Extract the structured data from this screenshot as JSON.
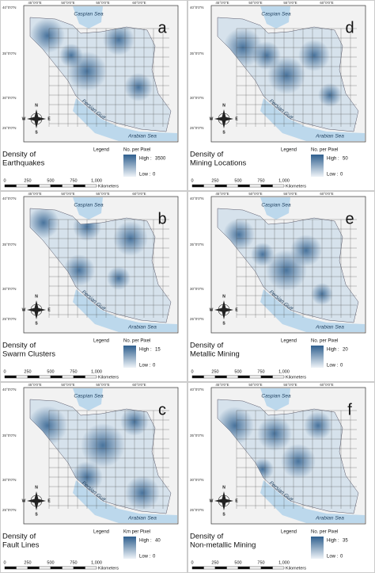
{
  "panels": [
    {
      "letter": "a",
      "title": [
        "Density of",
        "Earthquakes"
      ],
      "unit": "No. per Pixel",
      "high": 3500,
      "low": 0
    },
    {
      "letter": "b",
      "title": [
        "Density of",
        "Swarm Clusters"
      ],
      "unit": "No. per Pixel",
      "high": 15,
      "low": 0
    },
    {
      "letter": "c",
      "title": [
        "Density of",
        "Fault Lines"
      ],
      "unit": "Km per Pixel",
      "high": 40,
      "low": 0
    },
    {
      "letter": "d",
      "title": [
        "Density of",
        "Mining Locations"
      ],
      "unit": "No. per Pixel",
      "high": 50,
      "low": 0
    },
    {
      "letter": "e",
      "title": [
        "Density of",
        "Metallic Mining"
      ],
      "unit": "No. per Pixel",
      "high": 20,
      "low": 0
    },
    {
      "letter": "f",
      "title": [
        "Density of",
        "Non-metallic Mining"
      ],
      "unit": "No. per Pixel",
      "high": 35,
      "low": 0
    }
  ],
  "legend": {
    "title": "Legend",
    "high_label": "High :",
    "low_label": "Low :"
  },
  "scale_bar": {
    "ticks": [
      0,
      250,
      500,
      750,
      {
        "value": 1000,
        "label": "1,000"
      }
    ],
    "unit": "Kilometers"
  },
  "map_labels": {
    "caspian": "Caspian Sea",
    "gulf": "Persian Gulf",
    "arabian": "Arabian Sea"
  },
  "latitudes": [
    "40°0'0\"N",
    "35°0'0\"N",
    "30°0'0\"N",
    "25°0'0\"N"
  ],
  "longitudes": [
    "45°0'0\"E",
    "50°0'0\"E",
    "55°0'0\"E",
    "60°0'0\"E"
  ],
  "compass": [
    "N",
    "S",
    "E",
    "W"
  ]
}
